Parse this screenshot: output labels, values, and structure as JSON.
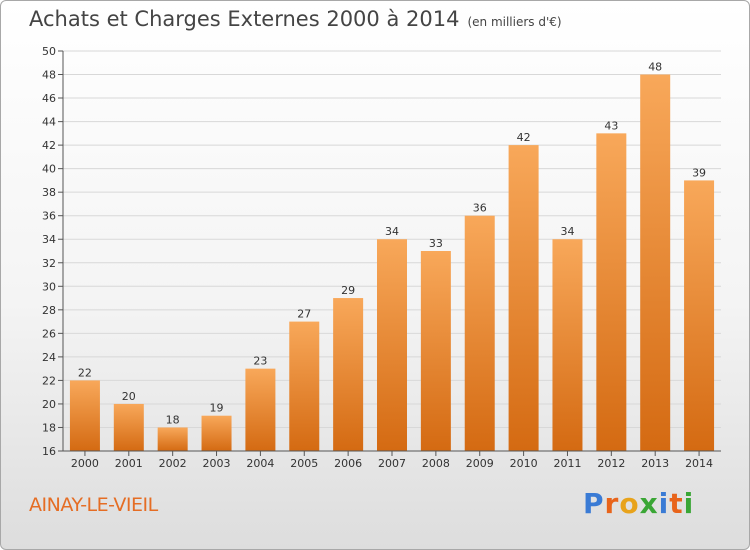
{
  "header": {
    "title": "Achats et Charges Externes 2000 à 2014",
    "unit": "(en milliers d'€)"
  },
  "footer": {
    "commune": "AINAY-LE-VIEIL",
    "logo_text": "Proxiti",
    "logo_letters": [
      "P",
      "r",
      "o",
      "x",
      "i",
      "t",
      "i"
    ],
    "logo_colors": [
      "#3a7bd5",
      "#e8641b",
      "#e8a31b",
      "#3aa635",
      "#3a7bd5",
      "#e8641b",
      "#3aa635"
    ]
  },
  "colors": {
    "bar_light": "#f8a85a",
    "bar_dark": "#d46a12",
    "grid": "#d8d8d8",
    "axis": "#555555",
    "text": "#333333"
  },
  "chart_data": {
    "type": "bar",
    "categories": [
      "2000",
      "2001",
      "2002",
      "2003",
      "2004",
      "2005",
      "2006",
      "2007",
      "2008",
      "2009",
      "2010",
      "2011",
      "2012",
      "2013",
      "2014"
    ],
    "values": [
      22,
      20,
      18,
      19,
      23,
      27,
      29,
      34,
      33,
      36,
      42,
      34,
      43,
      48,
      39
    ],
    "title": "Achats et Charges Externes 2000 à 2014",
    "ylim": [
      16,
      50
    ],
    "ytick_step": 2,
    "grid": true
  }
}
